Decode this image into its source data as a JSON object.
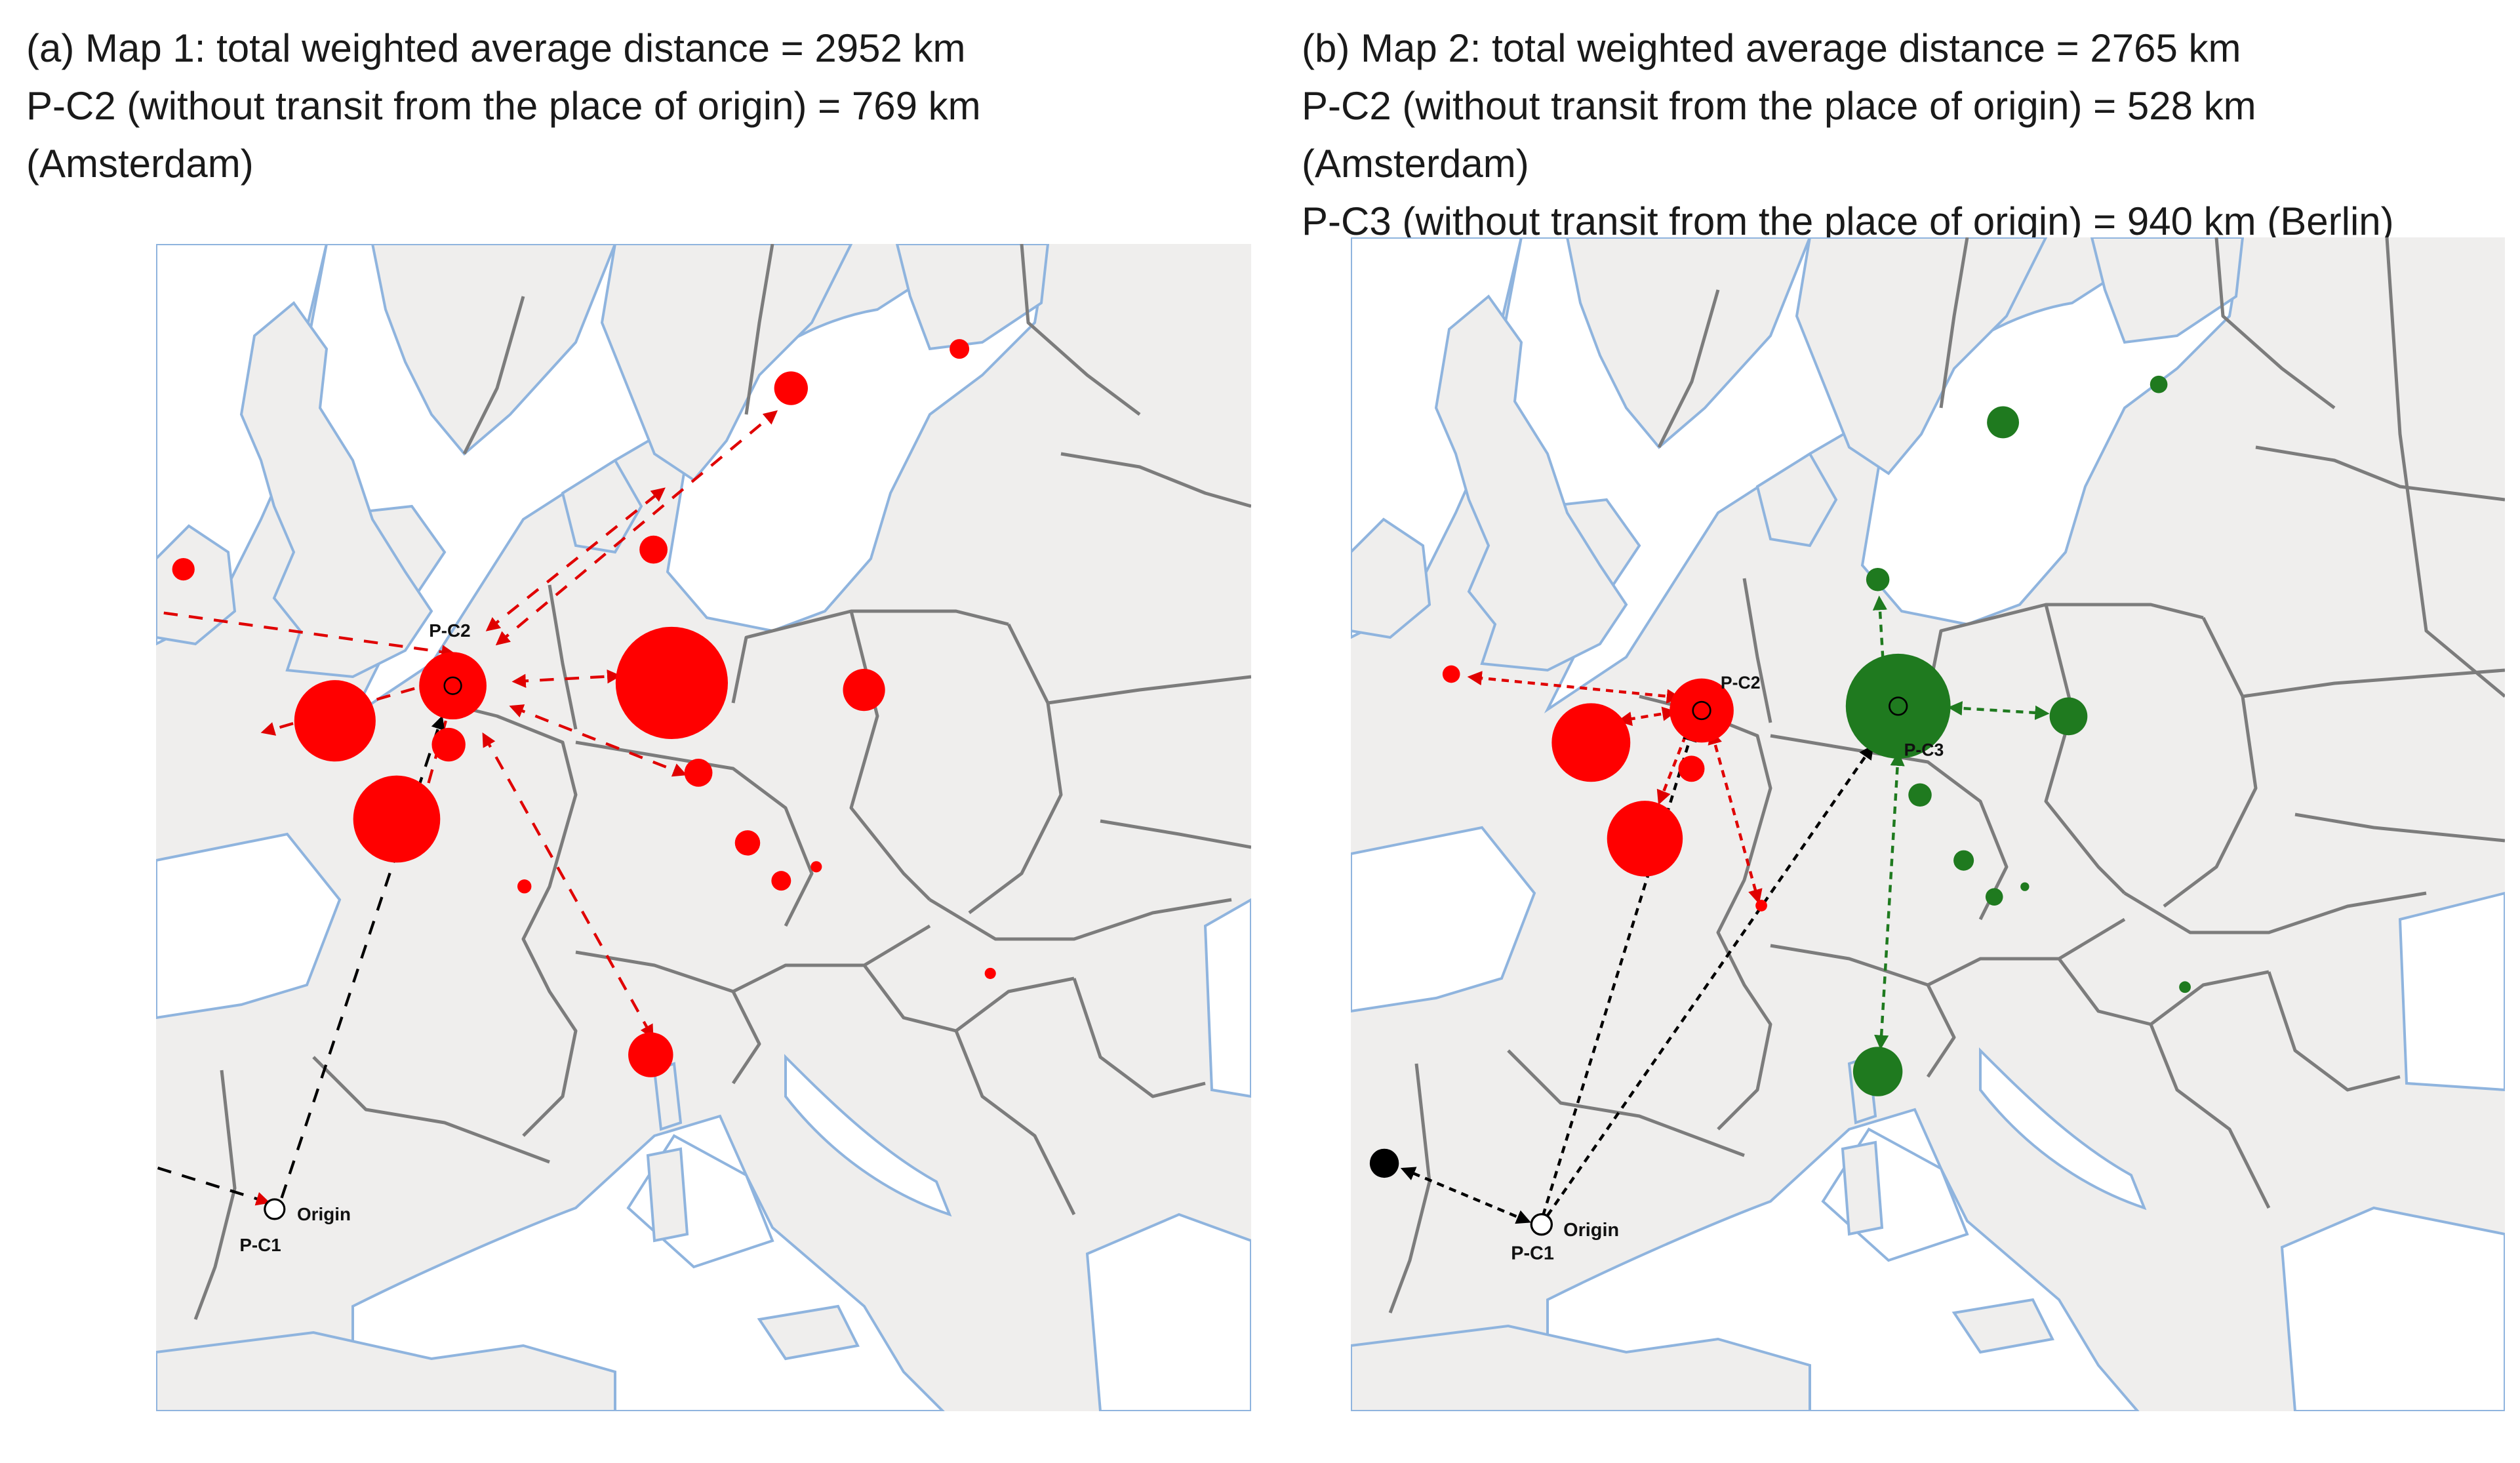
{
  "figure": {
    "map_a": {
      "caption": [
        "(a) Map 1: total weighted average distance = 2952 km",
        "P-C2 (without transit from the place of origin) = 769 km",
        "(Amsterdam)"
      ],
      "labels": {
        "hub": "P-C2",
        "origin": "Origin",
        "pc1": "P-C1"
      },
      "colors": {
        "hub": "#ff0000",
        "origin": "#000000"
      }
    },
    "map_b": {
      "caption": [
        "(b) Map 2: total weighted average distance = 2765 km",
        "P-C2 (without transit from the place of origin) = 528 km",
        "(Amsterdam)",
        "P-C3 (without transit from the place of origin) = 940 km (Berlin)"
      ],
      "labels": {
        "hub2": "P-C2",
        "hub3": "P-C3",
        "origin": "Origin",
        "pc1": "P-C1"
      },
      "colors": {
        "hub2": "#ff0000",
        "hub3": "#1f7a1f",
        "origin": "#000000"
      }
    },
    "map_style": {
      "land": "#efeeed",
      "sea": "#ffffff",
      "coast": "#8fb4de",
      "border": "#7c7c7c"
    }
  }
}
